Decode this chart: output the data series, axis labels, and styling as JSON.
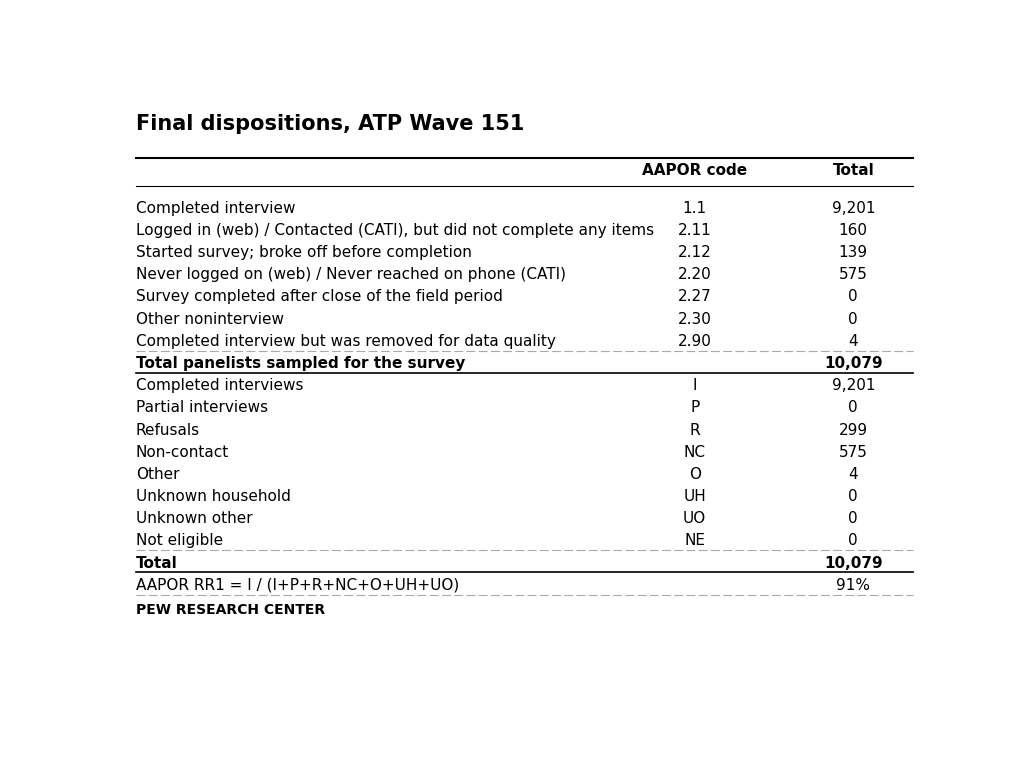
{
  "title": "Final dispositions, ATP Wave 151",
  "col_header_label": "AAPOR code",
  "col_header_total": "Total",
  "rows": [
    {
      "label": "Completed interview",
      "code": "1.1",
      "total": "9,201",
      "bold": false,
      "section_break_below": false,
      "break_bold": false
    },
    {
      "label": "Logged in (web) / Contacted (CATI), but did not complete any items",
      "code": "2.11",
      "total": "160",
      "bold": false,
      "section_break_below": false,
      "break_bold": false
    },
    {
      "label": "Started survey; broke off before completion",
      "code": "2.12",
      "total": "139",
      "bold": false,
      "section_break_below": false,
      "break_bold": false
    },
    {
      "label": "Never logged on (web) / Never reached on phone (CATI)",
      "code": "2.20",
      "total": "575",
      "bold": false,
      "section_break_below": false,
      "break_bold": false
    },
    {
      "label": "Survey completed after close of the field period",
      "code": "2.27",
      "total": "0",
      "bold": false,
      "section_break_below": false,
      "break_bold": false
    },
    {
      "label": "Other noninterview",
      "code": "2.30",
      "total": "0",
      "bold": false,
      "section_break_below": false,
      "break_bold": false
    },
    {
      "label": "Completed interview but was removed for data quality",
      "code": "2.90",
      "total": "4",
      "bold": false,
      "section_break_below": true,
      "break_bold": false
    },
    {
      "label": "Total panelists sampled for the survey",
      "code": "",
      "total": "10,079",
      "bold": true,
      "section_break_below": true,
      "break_bold": true
    },
    {
      "label": "Completed interviews",
      "code": "I",
      "total": "9,201",
      "bold": false,
      "section_break_below": false,
      "break_bold": false
    },
    {
      "label": "Partial interviews",
      "code": "P",
      "total": "0",
      "bold": false,
      "section_break_below": false,
      "break_bold": false
    },
    {
      "label": "Refusals",
      "code": "R",
      "total": "299",
      "bold": false,
      "section_break_below": false,
      "break_bold": false
    },
    {
      "label": "Non-contact",
      "code": "NC",
      "total": "575",
      "bold": false,
      "section_break_below": false,
      "break_bold": false
    },
    {
      "label": "Other",
      "code": "O",
      "total": "4",
      "bold": false,
      "section_break_below": false,
      "break_bold": false
    },
    {
      "label": "Unknown household",
      "code": "UH",
      "total": "0",
      "bold": false,
      "section_break_below": false,
      "break_bold": false
    },
    {
      "label": "Unknown other",
      "code": "UO",
      "total": "0",
      "bold": false,
      "section_break_below": false,
      "break_bold": false
    },
    {
      "label": "Not eligible",
      "code": "NE",
      "total": "0",
      "bold": false,
      "section_break_below": true,
      "break_bold": false
    },
    {
      "label": "Total",
      "code": "",
      "total": "10,079",
      "bold": true,
      "section_break_below": true,
      "break_bold": true
    },
    {
      "label": "AAPOR RR1 = I / (I+P+R+NC+O+UH+UO)",
      "code": "",
      "total": "91%",
      "bold": false,
      "section_break_below": true,
      "break_bold": false
    }
  ],
  "footer": "PEW RESEARCH CENTER",
  "bg_color": "#ffffff",
  "text_color": "#000000",
  "header_line_color": "#000000",
  "divider_color": "#aaaaaa",
  "title_fontsize": 15,
  "header_fontsize": 11,
  "row_fontsize": 11,
  "footer_fontsize": 10
}
